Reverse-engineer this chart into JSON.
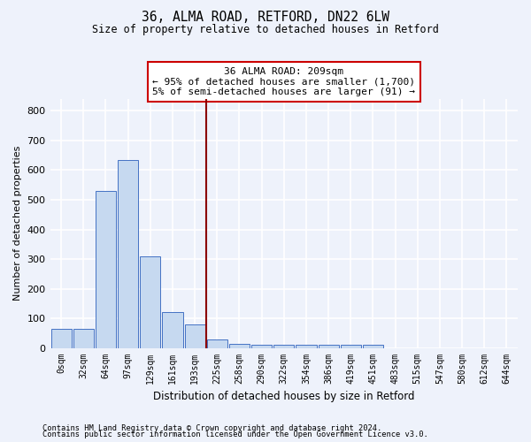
{
  "title1": "36, ALMA ROAD, RETFORD, DN22 6LW",
  "title2": "Size of property relative to detached houses in Retford",
  "xlabel": "Distribution of detached houses by size in Retford",
  "ylabel": "Number of detached properties",
  "bar_labels": [
    "0sqm",
    "32sqm",
    "64sqm",
    "97sqm",
    "129sqm",
    "161sqm",
    "193sqm",
    "225sqm",
    "258sqm",
    "290sqm",
    "322sqm",
    "354sqm",
    "386sqm",
    "419sqm",
    "451sqm",
    "483sqm",
    "515sqm",
    "547sqm",
    "580sqm",
    "612sqm",
    "644sqm"
  ],
  "bar_heights": [
    65,
    65,
    530,
    635,
    310,
    120,
    78,
    30,
    15,
    10,
    10,
    10,
    10,
    10,
    10,
    0,
    0,
    0,
    0,
    0,
    0
  ],
  "bar_color": "#c6d9f0",
  "bar_edge_color": "#4472c4",
  "background_color": "#eef2fb",
  "grid_color": "#ffffff",
  "vline_x": 6.5,
  "vline_color": "#8b0000",
  "annotation_text": "36 ALMA ROAD: 209sqm\n← 95% of detached houses are smaller (1,700)\n5% of semi-detached houses are larger (91) →",
  "annotation_box_color": "#ffffff",
  "annotation_box_edge_color": "#cc0000",
  "ylim": [
    0,
    840
  ],
  "yticks": [
    0,
    100,
    200,
    300,
    400,
    500,
    600,
    700,
    800
  ],
  "footnote1": "Contains HM Land Registry data © Crown copyright and database right 2024.",
  "footnote2": "Contains public sector information licensed under the Open Government Licence v3.0."
}
